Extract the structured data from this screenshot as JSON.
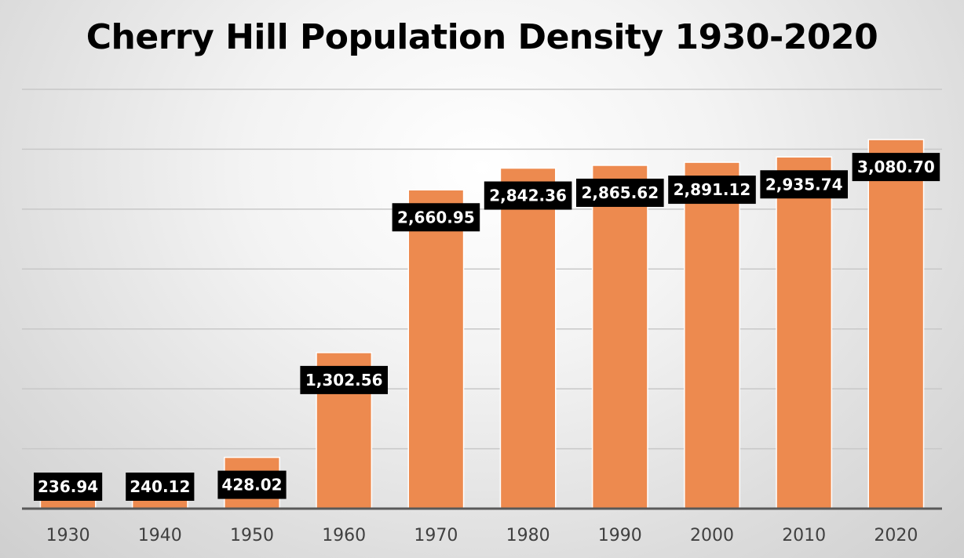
{
  "chart_data": {
    "type": "bar",
    "title": "Cherry Hill Population Density 1930-2020",
    "xlabel": "",
    "ylabel": "",
    "categories": [
      "1930",
      "1940",
      "1950",
      "1960",
      "1970",
      "1980",
      "1990",
      "2000",
      "2010",
      "2020"
    ],
    "values": [
      236.94,
      240.12,
      428.02,
      1302.56,
      2660.95,
      2842.36,
      2865.62,
      2891.12,
      2935.74,
      3080.7
    ],
    "data_labels": [
      "236.94",
      "240.12",
      "428.02",
      "1,302.56",
      "2,660.95",
      "2,842.36",
      "2,865.62",
      "2,891.12",
      "2,935.74",
      "3,080.70"
    ],
    "ylim": [
      0,
      3500
    ],
    "y_major_step": 500,
    "grid": true,
    "y_tick_labels_shown": false,
    "legend": "none",
    "colors": {
      "bar": "#ed8a4f",
      "bar_outline": "#ffffff",
      "label_background": "#000000",
      "label_text": "#ffffff",
      "gridline": "#c8c8c8",
      "axis": "#595959"
    }
  }
}
